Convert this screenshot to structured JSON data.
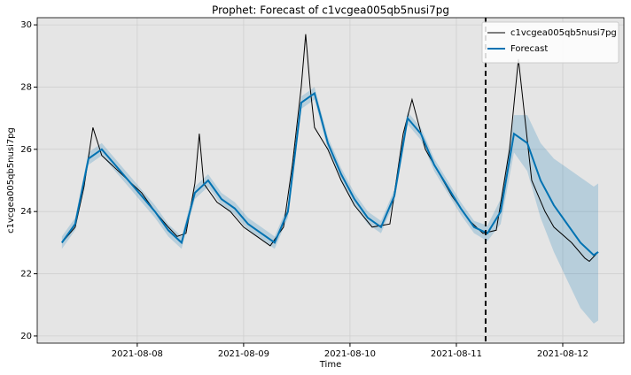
{
  "chart_data": {
    "type": "line",
    "title": "Prophet: Forecast of c1vcgea005qb5nusi7pg",
    "x_label": "Time",
    "y_label": "c1vcgea005qb5nusi7pg",
    "xlim": [
      "2021-08-07T01:26",
      "2021-08-12T13:48"
    ],
    "xticks": [
      "2021-08-08",
      "2021-08-09",
      "2021-08-10",
      "2021-08-11",
      "2021-08-12"
    ],
    "ylim": [
      19.77,
      30.23
    ],
    "yticks": [
      20,
      22,
      24,
      26,
      28,
      30
    ],
    "grid": true,
    "legend": "upper right",
    "forecast_start": "2021-08-11T06:36",
    "series": [
      {
        "name": "c1vcgea005qb5nusi7pg",
        "color": "#000000",
        "x": [
          "2021-08-07T07:00",
          "2021-08-07T10:00",
          "2021-08-07T12:00",
          "2021-08-07T14:00",
          "2021-08-07T16:00",
          "2021-08-07T19:00",
          "2021-08-07T22:00",
          "2021-08-08T01:00",
          "2021-08-08T04:00",
          "2021-08-08T07:00",
          "2021-08-08T09:00",
          "2021-08-08T11:00",
          "2021-08-08T13:00",
          "2021-08-08T14:00",
          "2021-08-08T15:00",
          "2021-08-08T18:00",
          "2021-08-08T21:00",
          "2021-08-09T00:00",
          "2021-08-09T03:00",
          "2021-08-09T06:00",
          "2021-08-09T09:00",
          "2021-08-09T11:00",
          "2021-08-09T13:00",
          "2021-08-09T14:00",
          "2021-08-09T15:00",
          "2021-08-09T16:00",
          "2021-08-09T19:00",
          "2021-08-09T22:00",
          "2021-08-10T01:00",
          "2021-08-10T05:00",
          "2021-08-10T09:00",
          "2021-08-10T12:00",
          "2021-08-10T14:00",
          "2021-08-10T17:00",
          "2021-08-10T19:00",
          "2021-08-10T23:00",
          "2021-08-11T03:00",
          "2021-08-11T06:00",
          "2021-08-11T09:00",
          "2021-08-11T12:00",
          "2021-08-11T14:00",
          "2021-08-11T17:00",
          "2021-08-11T20:00",
          "2021-08-11T22:00",
          "2021-08-12T02:00",
          "2021-08-12T05:00",
          "2021-08-12T06:00",
          "2021-08-12T08:00"
        ],
        "values": [
          23.0,
          23.5,
          24.8,
          26.7,
          25.8,
          25.4,
          25.0,
          24.6,
          24.0,
          23.5,
          23.2,
          23.3,
          24.9,
          26.5,
          24.9,
          24.3,
          24.0,
          23.5,
          23.2,
          22.9,
          23.5,
          25.5,
          28.0,
          29.7,
          28.0,
          26.7,
          26.0,
          25.0,
          24.2,
          23.5,
          23.6,
          26.5,
          27.6,
          26.0,
          25.5,
          24.5,
          23.7,
          23.3,
          23.4,
          26.0,
          28.9,
          25.0,
          24.0,
          23.5,
          23.0,
          22.5,
          22.4,
          22.7
        ]
      },
      {
        "name": "Forecast",
        "color": "#0072B2",
        "x": [
          "2021-08-07T07:00",
          "2021-08-07T10:00",
          "2021-08-07T13:00",
          "2021-08-07T16:00",
          "2021-08-07T19:00",
          "2021-08-07T22:00",
          "2021-08-08T01:00",
          "2021-08-08T04:00",
          "2021-08-08T07:00",
          "2021-08-08T10:00",
          "2021-08-08T13:00",
          "2021-08-08T16:00",
          "2021-08-08T19:00",
          "2021-08-08T22:00",
          "2021-08-09T01:00",
          "2021-08-09T04:00",
          "2021-08-09T07:00",
          "2021-08-09T10:00",
          "2021-08-09T13:00",
          "2021-08-09T16:00",
          "2021-08-09T19:00",
          "2021-08-09T22:00",
          "2021-08-10T01:00",
          "2021-08-10T04:00",
          "2021-08-10T07:00",
          "2021-08-10T10:00",
          "2021-08-10T13:00",
          "2021-08-10T16:00",
          "2021-08-10T19:00",
          "2021-08-10T22:00",
          "2021-08-11T01:00",
          "2021-08-11T04:00",
          "2021-08-11T07:00",
          "2021-08-11T10:00",
          "2021-08-11T13:00",
          "2021-08-11T16:00",
          "2021-08-11T19:00",
          "2021-08-11T22:00",
          "2021-08-12T01:00",
          "2021-08-12T04:00",
          "2021-08-12T07:00",
          "2021-08-12T08:00"
        ],
        "values": [
          23.0,
          23.6,
          25.7,
          26.0,
          25.5,
          25.0,
          24.5,
          24.0,
          23.4,
          23.0,
          24.6,
          25.0,
          24.4,
          24.1,
          23.6,
          23.3,
          23.0,
          24.0,
          27.5,
          27.8,
          26.2,
          25.2,
          24.4,
          23.8,
          23.5,
          24.5,
          27.0,
          26.5,
          25.5,
          24.8,
          24.1,
          23.5,
          23.3,
          24.0,
          26.5,
          26.2,
          25.0,
          24.2,
          23.6,
          23.0,
          22.6,
          22.7
        ],
        "lower": [
          22.8,
          23.4,
          25.5,
          25.8,
          25.3,
          24.8,
          24.3,
          23.8,
          23.2,
          22.8,
          24.4,
          24.8,
          24.2,
          23.9,
          23.4,
          23.1,
          22.8,
          23.8,
          27.3,
          27.6,
          26.0,
          25.0,
          24.2,
          23.6,
          23.3,
          24.3,
          26.8,
          26.3,
          25.3,
          24.6,
          23.9,
          23.3,
          23.05,
          23.6,
          25.9,
          25.3,
          23.8,
          22.7,
          21.8,
          20.9,
          20.4,
          20.5
        ],
        "upper": [
          23.2,
          23.8,
          25.9,
          26.2,
          25.7,
          25.2,
          24.7,
          24.2,
          23.6,
          23.2,
          24.8,
          25.2,
          24.6,
          24.3,
          23.8,
          23.5,
          23.2,
          24.2,
          27.7,
          28.0,
          26.4,
          25.4,
          24.6,
          24.0,
          23.7,
          24.7,
          27.2,
          26.7,
          25.7,
          25.0,
          24.3,
          23.7,
          23.55,
          24.4,
          27.1,
          27.1,
          26.2,
          25.7,
          25.4,
          25.1,
          24.8,
          24.9
        ]
      }
    ]
  }
}
